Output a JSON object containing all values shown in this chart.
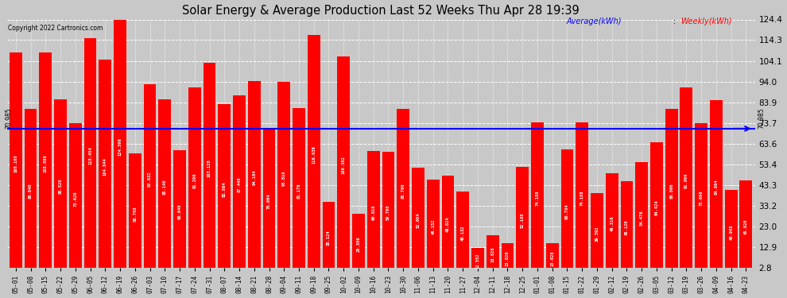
{
  "title": "Solar Energy & Average Production Last 52 Weeks Thu Apr 28 19:39",
  "copyright": "Copyright 2022 Cartronics.com",
  "average_label": "Average(kWh)",
  "weekly_label": "Weekly(kWh)",
  "average_value": 70.985,
  "bar_color": "#ff0000",
  "avg_line_color": "#0000ff",
  "background_color": "#c8c8c8",
  "plot_bg_color": "#c8c8c8",
  "ylim": [
    2.8,
    124.4
  ],
  "yticks": [
    2.8,
    12.9,
    23.0,
    33.2,
    43.3,
    53.4,
    63.6,
    73.7,
    83.9,
    94.0,
    104.1,
    114.3,
    124.4
  ],
  "categories": [
    "05-01",
    "05-08",
    "05-15",
    "05-22",
    "05-29",
    "06-05",
    "06-12",
    "06-19",
    "06-26",
    "07-03",
    "07-10",
    "07-17",
    "07-24",
    "07-31",
    "08-07",
    "08-14",
    "08-21",
    "08-28",
    "09-04",
    "09-11",
    "09-18",
    "09-25",
    "10-02",
    "10-09",
    "10-16",
    "10-23",
    "10-30",
    "11-06",
    "11-13",
    "11-20",
    "11-27",
    "12-04",
    "12-11",
    "12-18",
    "12-25",
    "01-01",
    "01-08",
    "01-15",
    "01-22",
    "01-29",
    "02-12",
    "02-19",
    "02-26",
    "03-05",
    "03-12",
    "03-19",
    "03-26",
    "04-09",
    "04-16",
    "04-23"
  ],
  "values": [
    108.108,
    80.84,
    108.096,
    85.52,
    73.62,
    115.454,
    104.844,
    124.396,
    58.708,
    92.832,
    85.14,
    60.64,
    91.296,
    103.128,
    82.864,
    87.44,
    94.104,
    70.664,
    93.816,
    81.176,
    116.636,
    35.124,
    106.302,
    29.306,
    60.016,
    59.76,
    80.76,
    52.004,
    46.152,
    48.024,
    40.132,
    12.552,
    18.828,
    15.026,
    52.188,
    74.188,
    15.028,
    60.784,
    74.188,
    39.392,
    49.316,
    45.12,
    54.476,
    64.424,
    80.806,
    91.096,
    73.696,
    84.864,
    40.908,
    45.82
  ],
  "value_labels": [
    "108.108",
    "80.840",
    "108.096",
    "85.520",
    "73.620",
    "115.454",
    "104.844",
    "124.396",
    "58.708",
    "92.832",
    "85.140",
    "60.640",
    "91.296",
    "103.128",
    "82.864",
    "87.440",
    "94.104",
    "70.664",
    "93.816",
    "81.176",
    "116.636",
    "35.124",
    "106.302",
    "29.306",
    "60.016",
    "59.760",
    "80.760",
    "52.004",
    "46.152",
    "48.024",
    "40.132",
    "12.552",
    "18.828",
    "15.026",
    "52.188",
    "74.188",
    "15.028",
    "60.784",
    "74.188",
    "39.392",
    "49.316",
    "45.120",
    "54.476",
    "64.424",
    "80.806",
    "91.096",
    "73.696",
    "84.864",
    "40.908",
    "45.820"
  ]
}
